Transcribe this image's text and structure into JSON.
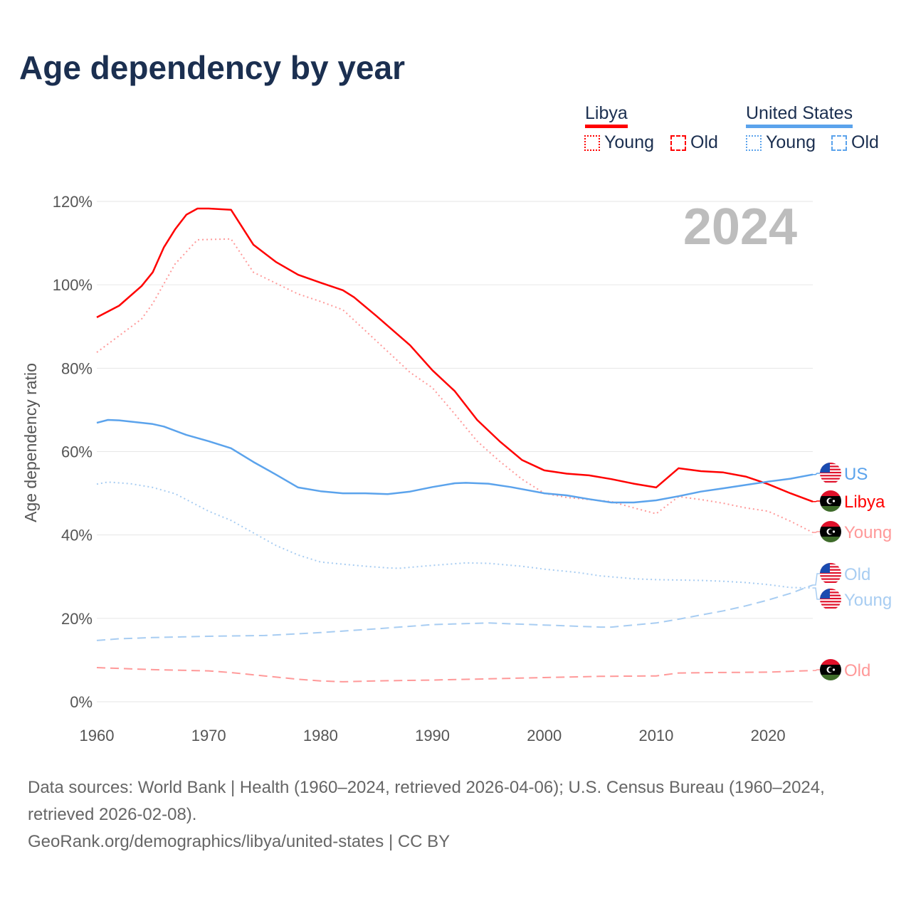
{
  "title": "Age dependency by year",
  "legend": {
    "groups": [
      {
        "name": "Libya",
        "color": "#ff0000",
        "items": [
          "Young",
          "Old"
        ]
      },
      {
        "name": "United States",
        "color": "#5ba3ec",
        "items": [
          "Young",
          "Old"
        ]
      }
    ]
  },
  "year_label": "2024",
  "source_line1": "Data sources: World Bank | Health (1960–2024, retrieved 2026-04-06); U.S. Census Bureau (1960–2024, retrieved 2026-02-08).",
  "source_line2": "GeoRank.org/demographics/libya/united-states | CC BY",
  "chart_data": {
    "type": "line",
    "title": "Age dependency by year",
    "xlabel": "",
    "ylabel": "Age dependency ratio",
    "xlim": [
      1960,
      2024
    ],
    "ylim": [
      0,
      120
    ],
    "xticks": [
      1960,
      1970,
      1980,
      1990,
      2000,
      2010,
      2020
    ],
    "yticks": [
      "0%",
      "20%",
      "40%",
      "60%",
      "80%",
      "100%",
      "120%"
    ],
    "grid": true,
    "legend_position": "top-right",
    "series": [
      {
        "name": "Libya",
        "end_label": "Libya",
        "flag": "libya",
        "color": "#ff0000",
        "style": "solid",
        "x": [
          1960,
          1962,
          1964,
          1965,
          1966,
          1967,
          1968,
          1969,
          1970,
          1972,
          1974,
          1976,
          1978,
          1980,
          1982,
          1983,
          1985,
          1988,
          1990,
          1992,
          1994,
          1996,
          1998,
          2000,
          2002,
          2004,
          2006,
          2008,
          2010,
          2012,
          2014,
          2016,
          2018,
          2020,
          2022,
          2024
        ],
        "y": [
          92.2,
          95,
          99.7,
          103,
          109,
          113.3,
          116.8,
          118.3,
          118.3,
          118,
          109.6,
          105.5,
          102.4,
          100.5,
          98.7,
          97,
          92.5,
          85.5,
          79.5,
          74.5,
          67.6,
          62.5,
          58,
          55.5,
          54.7,
          54.3,
          53.4,
          52.3,
          51.4,
          56,
          55.3,
          55,
          54,
          52.2,
          50,
          48
        ]
      },
      {
        "name": "Libya Young",
        "end_label": "Young",
        "flag": "libya",
        "color": "#ff9999",
        "style": "dotted",
        "x": [
          1960,
          1964,
          1965,
          1967,
          1969,
          1972,
          1974,
          1978,
          1980,
          1982,
          1984,
          1986,
          1988,
          1990,
          1992,
          1994,
          1996,
          1998,
          2000,
          2002,
          2004,
          2006,
          2008,
          2010,
          2012,
          2014,
          2016,
          2018,
          2020,
          2022,
          2024
        ],
        "y": [
          83.8,
          91.8,
          95.5,
          105,
          110.8,
          111,
          103,
          97.8,
          96,
          94,
          89,
          84,
          79,
          75.3,
          69,
          62.5,
          57.7,
          53.4,
          50,
          49,
          48.5,
          48,
          46.5,
          45.1,
          49.2,
          48.5,
          47.6,
          46.5,
          45.7,
          43.3,
          40.6
        ]
      },
      {
        "name": "Libya Old",
        "end_label": "Old",
        "flag": "libya",
        "color": "#ff9999",
        "style": "dashed",
        "x": [
          1960,
          1965,
          1970,
          1972,
          1975,
          1978,
          1980,
          1982,
          1985,
          1990,
          1995,
          2000,
          2005,
          2010,
          2012,
          2015,
          2020,
          2024
        ],
        "y": [
          8.2,
          7.7,
          7.4,
          7.0,
          6.2,
          5.4,
          5.0,
          4.8,
          5.0,
          5.2,
          5.5,
          5.8,
          6.1,
          6.2,
          6.9,
          7.0,
          7.1,
          7.5
        ]
      },
      {
        "name": "United States",
        "end_label": "US",
        "flag": "us",
        "color": "#5ba3ec",
        "style": "solid",
        "x": [
          1960,
          1961,
          1962,
          1965,
          1966,
          1968,
          1970,
          1972,
          1974,
          1976,
          1978,
          1980,
          1982,
          1984,
          1986,
          1988,
          1990,
          1992,
          1993,
          1995,
          1997,
          2000,
          2002,
          2004,
          2006,
          2008,
          2010,
          2012,
          2014,
          2016,
          2018,
          2020,
          2022,
          2024
        ],
        "y": [
          66.9,
          67.6,
          67.5,
          66.6,
          66,
          64,
          62.5,
          60.8,
          57.5,
          54.5,
          51.4,
          50.5,
          50,
          50,
          49.8,
          50.4,
          51.5,
          52.4,
          52.5,
          52.3,
          51.5,
          50,
          49.5,
          48.6,
          47.8,
          47.8,
          48.3,
          49.3,
          50.4,
          51.2,
          52,
          52.8,
          53.5,
          54.5
        ]
      },
      {
        "name": "United States Young",
        "end_label": "Young",
        "flag": "us",
        "color": "#a8cdf2",
        "style": "dotted",
        "x": [
          1960,
          1961,
          1963,
          1965,
          1967,
          1970,
          1972,
          1974,
          1976,
          1978,
          1980,
          1982,
          1984,
          1986,
          1987,
          1990,
          1993,
          1995,
          1998,
          2000,
          2003,
          2005,
          2008,
          2010,
          2014,
          2016,
          2018,
          2020,
          2022,
          2024
        ],
        "y": [
          52.2,
          52.7,
          52.3,
          51.4,
          49.9,
          45.7,
          43.5,
          40.5,
          37.5,
          35.2,
          33.5,
          33,
          32.5,
          32.1,
          32,
          32.7,
          33.3,
          33.2,
          32.5,
          31.8,
          31,
          30.2,
          29.5,
          29.3,
          29.1,
          28.9,
          28.6,
          28.1,
          27.4,
          27.3
        ]
      },
      {
        "name": "United States Old",
        "end_label": "Old",
        "flag": "us",
        "color": "#a8cdf2",
        "style": "dashed",
        "x": [
          1960,
          1962,
          1965,
          1970,
          1975,
          1980,
          1985,
          1990,
          1995,
          2000,
          2005,
          2006,
          2010,
          2012,
          2014,
          2016,
          2018,
          2020,
          2022,
          2024
        ],
        "y": [
          14.7,
          15.1,
          15.4,
          15.7,
          15.9,
          16.6,
          17.5,
          18.5,
          18.9,
          18.4,
          17.9,
          17.9,
          18.9,
          19.8,
          20.8,
          21.8,
          23,
          24.4,
          26,
          28
        ]
      }
    ]
  }
}
